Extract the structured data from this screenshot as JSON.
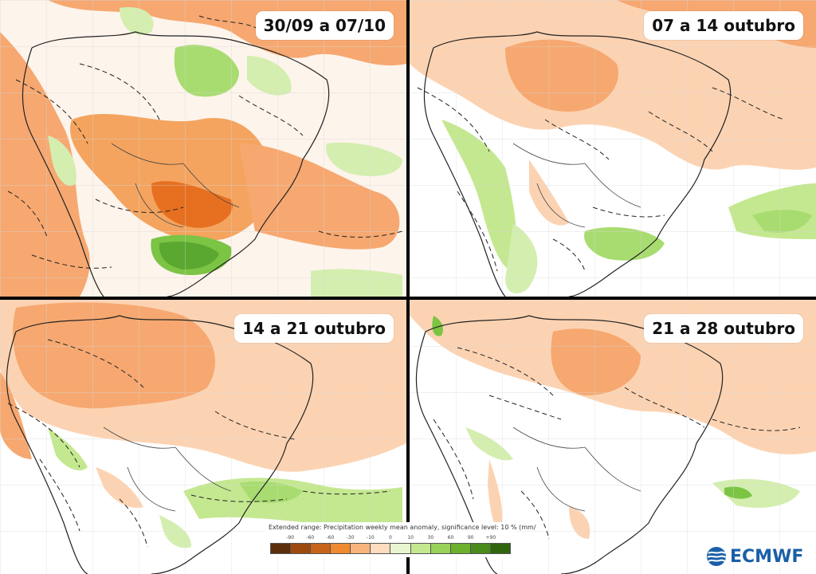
{
  "panels": [
    {
      "label": "30/09 a 07/10"
    },
    {
      "label": "07 a 14 outubro"
    },
    {
      "label": "14 a 21 outubro"
    },
    {
      "label": "21 a 28 outubro"
    }
  ],
  "legend": {
    "title": "Extended range: Precipitation weekly mean anomaly, significance level: 10 % (mm/",
    "ticks": [
      "-90",
      "-60",
      "-60",
      "-30",
      "-10",
      "0",
      "10",
      "30",
      "60",
      "90",
      "+90"
    ],
    "colors": [
      "#5c2e0a",
      "#9c4a10",
      "#c8641a",
      "#f08a30",
      "#f8b47c",
      "#fddcc0",
      "#e8f6d0",
      "#c4e890",
      "#98d25a",
      "#6cb02c",
      "#4a8a1c",
      "#30650e"
    ]
  },
  "brand": {
    "name": "ECMWF",
    "color": "#1a5fa8"
  },
  "colors": {
    "dry_strong": "#f08a30",
    "dry_medium": "#f6a870",
    "dry_light": "#fcd3b2",
    "wet_light": "#d4eeb0",
    "wet_medium": "#a8dc70",
    "wet_strong": "#7cc444",
    "line": "#222222"
  }
}
